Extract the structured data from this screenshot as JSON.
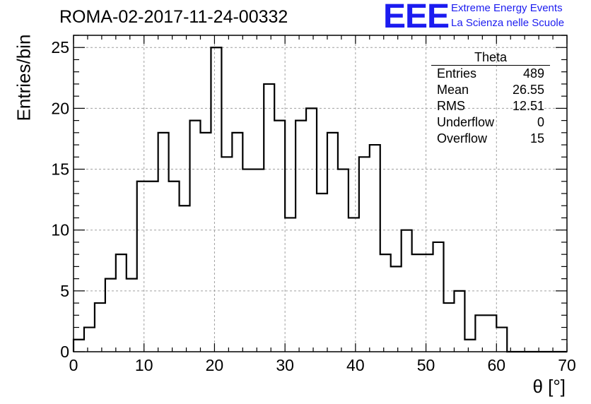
{
  "header": {
    "run_title": "ROMA-02-2017-11-24-00332",
    "logo_text": "EEE",
    "logo_line1": "Extreme Energy Events",
    "logo_line2": "La Scienza nelle Scuole",
    "logo_color": "#1c1cf0"
  },
  "stats_box": {
    "title": "Theta",
    "rows": [
      {
        "label": "Entries",
        "value": "489"
      },
      {
        "label": "Mean",
        "value": "26.55"
      },
      {
        "label": "RMS",
        "value": "12.51"
      },
      {
        "label": "Underflow",
        "value": "0"
      },
      {
        "label": "Overflow",
        "value": "15"
      }
    ]
  },
  "chart_data": {
    "type": "bar",
    "style": "step-histogram",
    "xlabel": "θ [°]",
    "ylabel": "Entries/bin",
    "xlim": [
      0,
      70
    ],
    "ylim": [
      0,
      26
    ],
    "grid": true,
    "bin_width": 1.5,
    "x_ticks": [
      0,
      10,
      20,
      30,
      40,
      50,
      60,
      70
    ],
    "y_ticks": [
      0,
      5,
      10,
      15,
      20,
      25
    ],
    "bin_edges": [
      0,
      1.5,
      3,
      4.5,
      6,
      7.5,
      9,
      10.5,
      12,
      13.5,
      15,
      16.5,
      18,
      19.5,
      21,
      22.5,
      24,
      25.5,
      27,
      28.5,
      30,
      31.5,
      33,
      34.5,
      36,
      37.5,
      39,
      40.5,
      42,
      43.5,
      45,
      46.5,
      48,
      49.5,
      51,
      52.5,
      54,
      55.5,
      57,
      58.5,
      60,
      61.5,
      63,
      64.5,
      66,
      67.5,
      69,
      70
    ],
    "values": [
      1,
      2,
      4,
      6,
      8,
      6,
      14,
      14,
      18,
      14,
      12,
      19,
      18,
      25,
      16,
      18,
      15,
      15,
      22,
      19,
      11,
      19,
      20,
      13,
      18,
      15,
      11,
      16,
      17,
      8,
      7,
      10,
      8,
      8,
      9,
      4,
      5,
      1,
      3,
      3,
      2,
      0,
      0,
      0,
      0,
      0,
      0
    ]
  }
}
